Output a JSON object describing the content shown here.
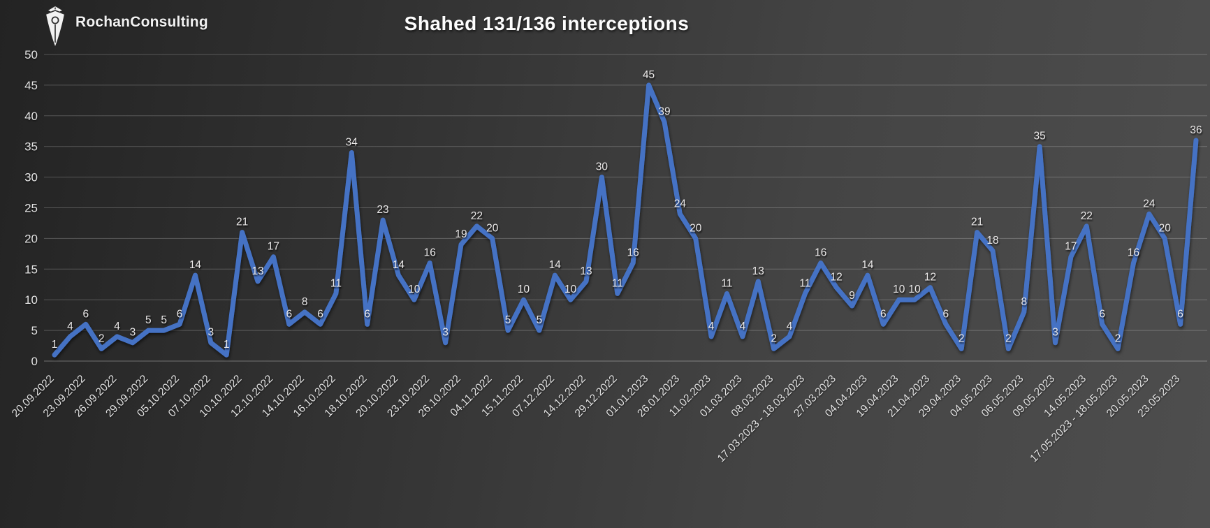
{
  "logo": {
    "text": "RochanConsulting"
  },
  "chart_data": {
    "type": "line",
    "title": "Shahed 131/136 interceptions",
    "series_name": "Shahed 131/136 interceptions",
    "series_color": "#4472c4",
    "grid": true,
    "legend": "none",
    "ylim": [
      0,
      50
    ],
    "ytick_step": 5,
    "ytick_labels": [
      "0",
      "5",
      "10",
      "15",
      "20",
      "25",
      "30",
      "35",
      "40",
      "45",
      "50"
    ],
    "x_tick_every": 2,
    "x_tick_labels": [
      "20.09.2022",
      "23.09.2022",
      "26.09.2022",
      "29.09.2022",
      "05.10.2022",
      "07.10.2022",
      "10.10.2022",
      "12.10.2022",
      "14.10.2022",
      "16.10.2022",
      "18.10.2022",
      "20.10.2022",
      "23.10.2022",
      "26.10.2022",
      "04.11.2022",
      "15.11.2022",
      "07.12.2022",
      "14.12.2022",
      "29.12.2022",
      "01.01.2023",
      "26.01.2023",
      "11.02.2023",
      "01.03.2023",
      "08.03.2023",
      "17.03.2023 - 18.03.2023",
      "27.03.2023",
      "04.04.2023",
      "19.04.2023",
      "21.04.2023",
      "29.04.2023",
      "04.05.2023",
      "06.05.2023",
      "09.05.2023",
      "14.05.2023",
      "17.05.2023 - 18.05.2023",
      "20.05.2023",
      "23.05.2023"
    ],
    "values": [
      1,
      4,
      6,
      2,
      4,
      3,
      5,
      5,
      6,
      14,
      3,
      1,
      21,
      13,
      17,
      6,
      8,
      6,
      11,
      34,
      6,
      23,
      14,
      10,
      16,
      3,
      19,
      22,
      20,
      5,
      10,
      5,
      14,
      10,
      13,
      30,
      11,
      16,
      45,
      39,
      24,
      20,
      4,
      11,
      4,
      13,
      2,
      4,
      11,
      16,
      12,
      9,
      14,
      6,
      10,
      10,
      12,
      6,
      2,
      21,
      18,
      2,
      8,
      35,
      3,
      17,
      22,
      6,
      2,
      16,
      24,
      20,
      6,
      36
    ]
  }
}
